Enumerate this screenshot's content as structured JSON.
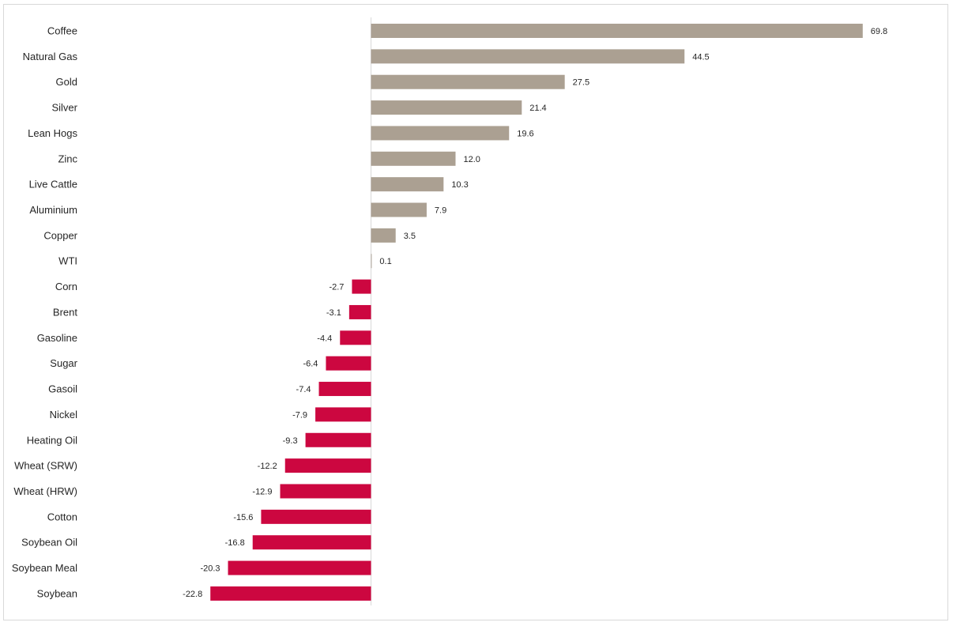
{
  "chart_data": {
    "type": "bar",
    "orientation": "horizontal",
    "categories": [
      "Coffee",
      "Natural Gas",
      "Gold",
      "Silver",
      "Lean Hogs",
      "Zinc",
      "Live Cattle",
      "Aluminium",
      "Copper",
      "WTI",
      "Corn",
      "Brent",
      "Gasoline",
      "Sugar",
      "Gasoil",
      "Nickel",
      "Heating Oil",
      "Wheat (SRW)",
      "Wheat (HRW)",
      "Cotton",
      "Soybean Oil",
      "Soybean Meal",
      "Soybean"
    ],
    "values": [
      69.8,
      44.5,
      27.5,
      21.4,
      19.6,
      12.0,
      10.3,
      7.9,
      3.5,
      0.1,
      -2.7,
      -3.1,
      -4.4,
      -6.4,
      -7.4,
      -7.9,
      -9.3,
      -12.2,
      -12.9,
      -15.6,
      -16.8,
      -20.3,
      -22.8
    ],
    "value_labels": [
      "69.8",
      "44.5",
      "27.5",
      "21.4",
      "19.6",
      "12.0",
      "10.3",
      "7.9",
      "3.5",
      "0.1",
      "-2.7",
      "-3.1",
      "-4.4",
      "-6.4",
      "-7.4",
      "-7.9",
      "-9.3",
      "-12.2",
      "-12.9",
      "-15.6",
      "-16.8",
      "-20.3",
      "-22.8"
    ],
    "title": "",
    "xlabel": "",
    "ylabel": "",
    "xlim": [
      -22.8,
      69.8
    ],
    "grid": false,
    "legend": "none",
    "colors": {
      "positive": "#aba092",
      "negative": "#cc0740",
      "axis": "#d9d9d9",
      "text": "#262626"
    }
  }
}
